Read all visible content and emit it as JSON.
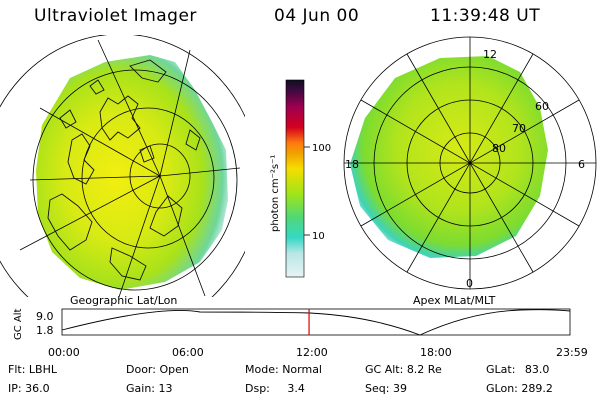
{
  "header": {
    "title": "Ultraviolet Imager",
    "date": "04 Jun 00",
    "time": "11:39:48 UT"
  },
  "left_panel": {
    "caption": "Geographic Lat/Lon"
  },
  "right_panel": {
    "caption": "Apex MLat/MLT",
    "lat_labels": [
      "60",
      "70",
      "80"
    ],
    "mlt_labels": {
      "top": "12",
      "bottom": "0",
      "left": "18",
      "right": "6"
    }
  },
  "colorbar": {
    "unit_label": "photon cm⁻²s⁻¹",
    "tick_labels": [
      "100",
      "10"
    ],
    "colors": [
      "#1a1a3a",
      "#7a0058",
      "#d4001e",
      "#f07a00",
      "#f6dd00",
      "#a6e600",
      "#35e0c0",
      "#e0f4f4"
    ]
  },
  "timeline": {
    "y_axis_label": "GC Alt",
    "y_ticks": [
      "9.0",
      "1.8"
    ],
    "x_ticks": [
      "00:00",
      "06:00",
      "12:00",
      "18:00",
      "23:59"
    ],
    "marker_time": "11:39:48",
    "marker_color": "#e00000"
  },
  "info": {
    "filter_label": "Flt:",
    "filter_value": "LBHL",
    "ip_label": "IP:",
    "ip_value": "36.0",
    "door_label": "Door:",
    "door_value": "Open",
    "gain_label": "Gain:",
    "gain_value": "13",
    "mode_label": "Mode:",
    "mode_value": "Normal",
    "dsp_label": "Dsp:",
    "dsp_value": "3.4",
    "gcalt_label": "GC Alt:",
    "gcalt_value": "8.2 Re",
    "seq_label": "Seq:",
    "seq_value": "39",
    "glat_label": "GLat:",
    "glat_value": "83.0",
    "glon_label": "GLon:",
    "glon_value": "289.2"
  }
}
